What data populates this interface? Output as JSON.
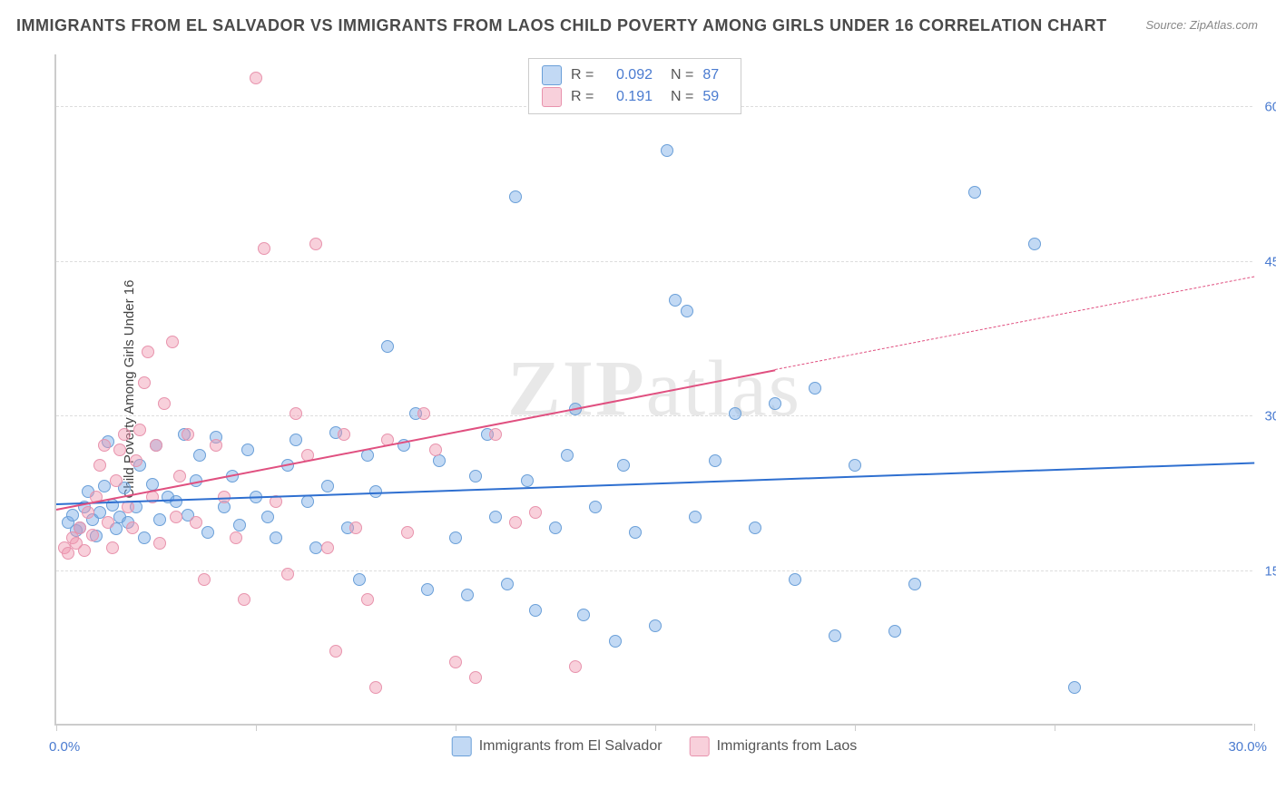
{
  "title": "IMMIGRANTS FROM EL SALVADOR VS IMMIGRANTS FROM LAOS CHILD POVERTY AMONG GIRLS UNDER 16 CORRELATION CHART",
  "source": "Source: ZipAtlas.com",
  "watermark_bold": "ZIP",
  "watermark_rest": "atlas",
  "yaxis_title": "Child Poverty Among Girls Under 16",
  "chart": {
    "type": "scatter",
    "xlim": [
      0,
      30
    ],
    "ylim": [
      0,
      65
    ],
    "xticks": [
      0,
      5,
      10,
      15,
      20,
      25,
      30
    ],
    "yticks": [
      15,
      30,
      45,
      60
    ],
    "ytick_labels": [
      "15.0%",
      "30.0%",
      "45.0%",
      "60.0%"
    ],
    "xlim_labels": [
      "0.0%",
      "30.0%"
    ],
    "background_color": "#ffffff",
    "grid_color": "#dddddd",
    "axis_color": "#cccccc",
    "tick_label_color": "#4a7bd0",
    "point_radius": 7,
    "series": [
      {
        "name": "Immigrants from El Salvador",
        "color_fill": "rgba(120,170,230,0.45)",
        "color_stroke": "#6a9fd8",
        "trend_color": "#2e6fd0",
        "r": "0.092",
        "n": "87",
        "trend": {
          "x0": 0,
          "y0": 21.5,
          "x1": 30,
          "y1": 25.5
        },
        "points": [
          [
            0.3,
            19.5
          ],
          [
            0.4,
            20.2
          ],
          [
            0.5,
            18.7
          ],
          [
            0.6,
            19.0
          ],
          [
            0.7,
            21.0
          ],
          [
            0.8,
            22.5
          ],
          [
            0.9,
            19.8
          ],
          [
            1.0,
            18.2
          ],
          [
            1.1,
            20.5
          ],
          [
            1.2,
            23.0
          ],
          [
            1.3,
            27.3
          ],
          [
            1.4,
            21.2
          ],
          [
            1.5,
            18.9
          ],
          [
            1.6,
            20.0
          ],
          [
            1.7,
            22.8
          ],
          [
            1.8,
            19.5
          ],
          [
            2.0,
            21.0
          ],
          [
            2.1,
            25.0
          ],
          [
            2.2,
            18.0
          ],
          [
            2.4,
            23.2
          ],
          [
            2.5,
            27.0
          ],
          [
            2.6,
            19.8
          ],
          [
            2.8,
            22.0
          ],
          [
            3.0,
            21.5
          ],
          [
            3.2,
            28.0
          ],
          [
            3.3,
            20.2
          ],
          [
            3.5,
            23.5
          ],
          [
            3.6,
            26.0
          ],
          [
            3.8,
            18.5
          ],
          [
            4.0,
            27.8
          ],
          [
            4.2,
            21.0
          ],
          [
            4.4,
            24.0
          ],
          [
            4.6,
            19.2
          ],
          [
            4.8,
            26.5
          ],
          [
            5.0,
            22.0
          ],
          [
            5.3,
            20.0
          ],
          [
            5.5,
            18.0
          ],
          [
            5.8,
            25.0
          ],
          [
            6.0,
            27.5
          ],
          [
            6.3,
            21.5
          ],
          [
            6.5,
            17.0
          ],
          [
            6.8,
            23.0
          ],
          [
            7.0,
            28.2
          ],
          [
            7.3,
            19.0
          ],
          [
            7.6,
            14.0
          ],
          [
            7.8,
            26.0
          ],
          [
            8.0,
            22.5
          ],
          [
            8.3,
            36.5
          ],
          [
            8.7,
            27.0
          ],
          [
            9.0,
            30.0
          ],
          [
            9.3,
            13.0
          ],
          [
            9.6,
            25.5
          ],
          [
            10.0,
            18.0
          ],
          [
            10.3,
            12.5
          ],
          [
            10.5,
            24.0
          ],
          [
            10.8,
            28.0
          ],
          [
            11.0,
            20.0
          ],
          [
            11.3,
            13.5
          ],
          [
            11.5,
            51.0
          ],
          [
            11.8,
            23.5
          ],
          [
            12.0,
            11.0
          ],
          [
            12.5,
            19.0
          ],
          [
            12.8,
            26.0
          ],
          [
            13.0,
            30.5
          ],
          [
            13.2,
            10.5
          ],
          [
            13.5,
            21.0
          ],
          [
            14.0,
            8.0
          ],
          [
            14.2,
            25.0
          ],
          [
            14.5,
            18.5
          ],
          [
            15.0,
            9.5
          ],
          [
            15.3,
            55.5
          ],
          [
            15.5,
            41.0
          ],
          [
            15.8,
            40.0
          ],
          [
            16.0,
            20.0
          ],
          [
            16.5,
            25.5
          ],
          [
            17.0,
            30.0
          ],
          [
            17.5,
            19.0
          ],
          [
            18.0,
            31.0
          ],
          [
            18.5,
            14.0
          ],
          [
            19.0,
            32.5
          ],
          [
            19.5,
            8.5
          ],
          [
            20.0,
            25.0
          ],
          [
            21.0,
            9.0
          ],
          [
            21.5,
            13.5
          ],
          [
            23.0,
            51.5
          ],
          [
            24.5,
            46.5
          ],
          [
            25.5,
            3.5
          ]
        ]
      },
      {
        "name": "Immigrants from Laos",
        "color_fill": "rgba(240,150,175,0.45)",
        "color_stroke": "#e893ad",
        "trend_color": "#e05080",
        "r": "0.191",
        "n": "59",
        "trend": {
          "x0": 0,
          "y0": 21.0,
          "x1": 18,
          "y1": 34.5
        },
        "trend_dash": {
          "x0": 18,
          "y0": 34.5,
          "x1": 30,
          "y1": 43.5
        },
        "points": [
          [
            0.2,
            17.0
          ],
          [
            0.3,
            16.5
          ],
          [
            0.4,
            18.0
          ],
          [
            0.5,
            17.5
          ],
          [
            0.6,
            19.0
          ],
          [
            0.7,
            16.8
          ],
          [
            0.8,
            20.5
          ],
          [
            0.9,
            18.3
          ],
          [
            1.0,
            22.0
          ],
          [
            1.1,
            25.0
          ],
          [
            1.2,
            27.0
          ],
          [
            1.3,
            19.5
          ],
          [
            1.4,
            17.0
          ],
          [
            1.5,
            23.5
          ],
          [
            1.6,
            26.5
          ],
          [
            1.7,
            28.0
          ],
          [
            1.8,
            21.0
          ],
          [
            1.9,
            19.0
          ],
          [
            2.0,
            25.5
          ],
          [
            2.1,
            28.5
          ],
          [
            2.2,
            33.0
          ],
          [
            2.3,
            36.0
          ],
          [
            2.4,
            22.0
          ],
          [
            2.5,
            27.0
          ],
          [
            2.6,
            17.5
          ],
          [
            2.7,
            31.0
          ],
          [
            2.9,
            37.0
          ],
          [
            3.0,
            20.0
          ],
          [
            3.1,
            24.0
          ],
          [
            3.3,
            28.0
          ],
          [
            3.5,
            19.5
          ],
          [
            3.7,
            14.0
          ],
          [
            4.0,
            27.0
          ],
          [
            4.2,
            22.0
          ],
          [
            4.5,
            18.0
          ],
          [
            4.7,
            12.0
          ],
          [
            5.0,
            62.5
          ],
          [
            5.2,
            46.0
          ],
          [
            5.5,
            21.5
          ],
          [
            5.8,
            14.5
          ],
          [
            6.0,
            30.0
          ],
          [
            6.3,
            26.0
          ],
          [
            6.5,
            46.5
          ],
          [
            6.8,
            17.0
          ],
          [
            7.0,
            7.0
          ],
          [
            7.2,
            28.0
          ],
          [
            7.5,
            19.0
          ],
          [
            7.8,
            12.0
          ],
          [
            8.0,
            3.5
          ],
          [
            8.3,
            27.5
          ],
          [
            8.8,
            18.5
          ],
          [
            9.2,
            30.0
          ],
          [
            9.5,
            26.5
          ],
          [
            10.0,
            6.0
          ],
          [
            10.5,
            4.5
          ],
          [
            11.0,
            28.0
          ],
          [
            11.5,
            19.5
          ],
          [
            12.0,
            20.5
          ],
          [
            13.0,
            5.5
          ]
        ]
      }
    ]
  },
  "legend": {
    "r_label": "R =",
    "n_label": "N ="
  }
}
